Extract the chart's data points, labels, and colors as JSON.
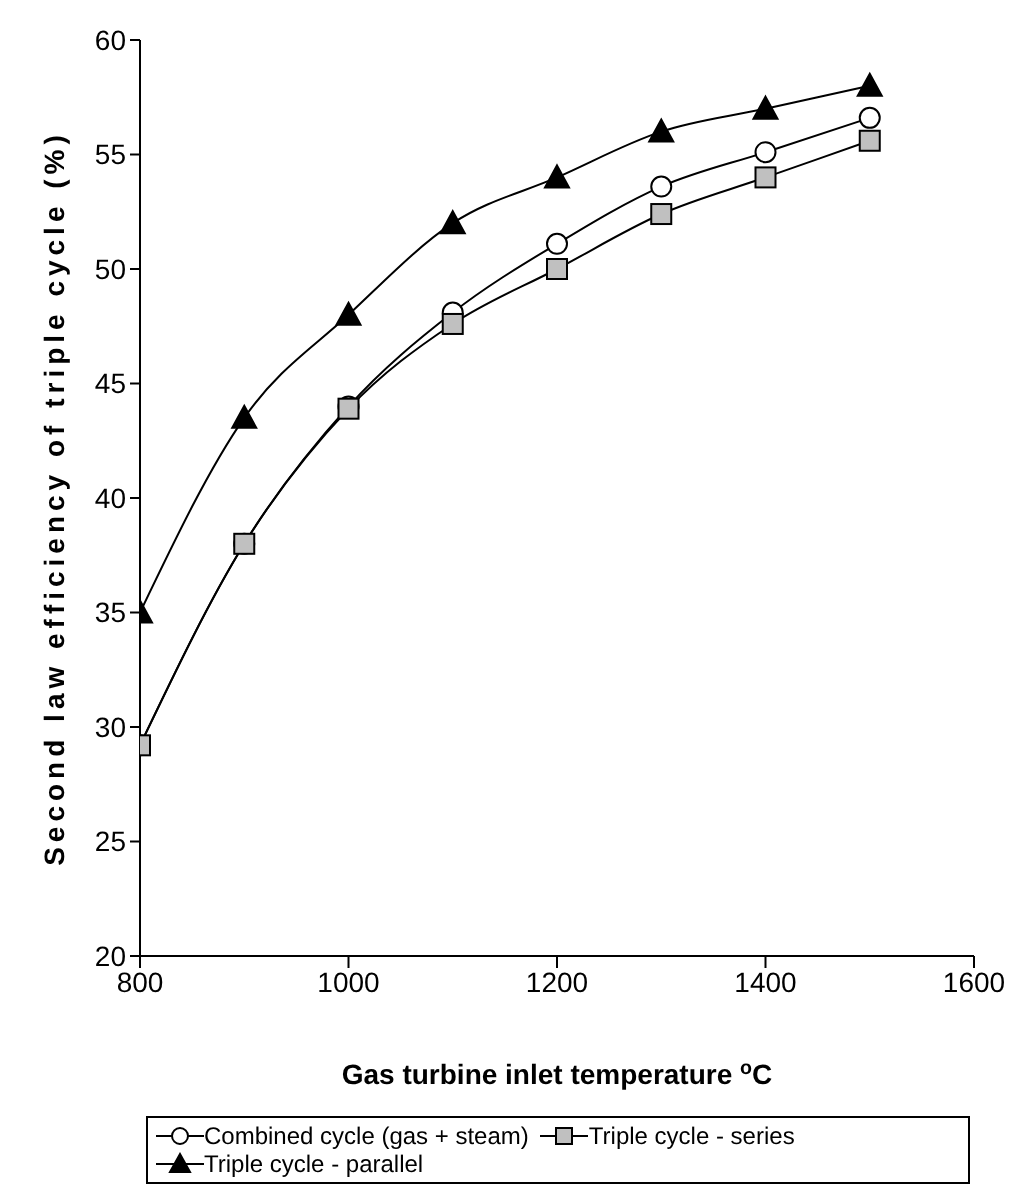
{
  "chart_data": {
    "type": "line",
    "xlabel": "Gas turbine inlet temperature $^{o}$C",
    "ylabel": "Second law efficiency of triple cycle (%)",
    "x": [
      800,
      900,
      1000,
      1100,
      1200,
      1300,
      1400,
      1500
    ],
    "series": [
      {
        "name": "Combined cycle (gas + steam)",
        "color": "#000000",
        "marker": "circle",
        "values": [
          29.2,
          38,
          44,
          48.1,
          51.1,
          53.6,
          55.1,
          56.6
        ]
      },
      {
        "name": "Triple cycle - series",
        "color": "#000000",
        "marker": "square",
        "values": [
          29.2,
          38,
          43.9,
          47.6,
          50,
          52.4,
          54,
          55.6
        ]
      },
      {
        "name": "Triple cycle - parallel",
        "color": "#000000",
        "marker": "triangle",
        "values": [
          35,
          43.5,
          48,
          52,
          54,
          56,
          57,
          58
        ]
      }
    ],
    "xlim": [
      800,
      1600
    ],
    "xticks": [
      800,
      1000,
      1200,
      1400,
      1600
    ],
    "ylim": [
      20,
      60
    ],
    "yticks": [
      20,
      25,
      30,
      35,
      40,
      45,
      50,
      55,
      60
    ],
    "grid": false,
    "legend": "bottom",
    "line_style": "solid"
  }
}
